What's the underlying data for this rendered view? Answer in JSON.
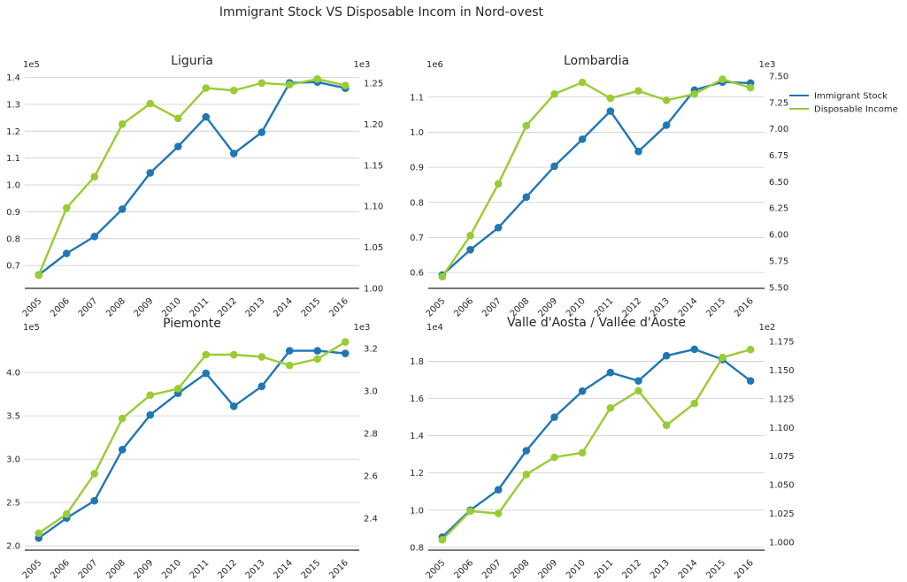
{
  "figure": {
    "title": "Immigrant Stock VS Disposable Incom in Nord-ovest"
  },
  "colors": {
    "immigrant_stock": "#1f77b4",
    "disposable_income": "#99cc33",
    "grid": "#cccccc"
  },
  "legend": {
    "placement": "right",
    "items": [
      {
        "label": "Immigrant Stock",
        "color": "#1f77b4"
      },
      {
        "label": "Disposable Income",
        "color": "#99cc33"
      }
    ]
  },
  "chart_data": [
    {
      "type": "line",
      "title": "Liguria",
      "categories": [
        "2005",
        "2006",
        "2007",
        "2008",
        "2009",
        "2010",
        "2011",
        "2012",
        "2013",
        "2014",
        "2015",
        "2016"
      ],
      "left_axis": {
        "multiplier": "1e5",
        "ylim": [
          0.615,
          1.425
        ],
        "ticks": [
          "0.7",
          "0.8",
          "0.9",
          "1.0",
          "1.1",
          "1.2",
          "1.3",
          "1.4"
        ]
      },
      "right_axis": {
        "multiplier": "1e3",
        "ylim": [
          1.0,
          1.265
        ],
        "ticks": [
          "1.00",
          "1.05",
          "1.10",
          "1.15",
          "1.20",
          "1.25"
        ]
      },
      "grid": true,
      "series": [
        {
          "name": "Immigrant Stock",
          "axis": "left",
          "values": [
            0.665,
            0.745,
            0.808,
            0.91,
            1.045,
            1.143,
            1.253,
            1.117,
            1.196,
            1.38,
            1.383,
            1.36
          ]
        },
        {
          "name": "Disposable Income",
          "axis": "right",
          "values": [
            1.016,
            1.098,
            1.136,
            1.2,
            1.225,
            1.207,
            1.244,
            1.241,
            1.25,
            1.248,
            1.255,
            1.247
          ]
        }
      ]
    },
    {
      "type": "line",
      "title": "Lombardia",
      "categories": [
        "2005",
        "2006",
        "2007",
        "2008",
        "2009",
        "2010",
        "2011",
        "2012",
        "2013",
        "2014",
        "2015",
        "2016"
      ],
      "left_axis": {
        "multiplier": "1e6",
        "ylim": [
          0.555,
          1.175
        ],
        "ticks": [
          "0.6",
          "0.7",
          "0.8",
          "0.9",
          "1.0",
          "1.1"
        ]
      },
      "right_axis": {
        "multiplier": "1e3",
        "ylim": [
          5.49,
          7.55
        ],
        "ticks": [
          "5.50",
          "5.75",
          "6.00",
          "6.25",
          "6.50",
          "6.75",
          "7.00",
          "7.25",
          "7.50"
        ]
      },
      "grid": true,
      "series": [
        {
          "name": "Immigrant Stock",
          "axis": "left",
          "values": [
            0.593,
            0.665,
            0.728,
            0.815,
            0.903,
            0.98,
            1.06,
            0.945,
            1.02,
            1.12,
            1.143,
            1.14
          ]
        },
        {
          "name": "Disposable Income",
          "axis": "right",
          "values": [
            5.6,
            5.99,
            6.48,
            7.03,
            7.33,
            7.44,
            7.29,
            7.36,
            7.27,
            7.33,
            7.47,
            7.39
          ]
        }
      ]
    },
    {
      "type": "line",
      "title": "Piemonte",
      "categories": [
        "2005",
        "2006",
        "2007",
        "2008",
        "2009",
        "2010",
        "2011",
        "2012",
        "2013",
        "2014",
        "2015",
        "2016"
      ],
      "left_axis": {
        "multiplier": "1e5",
        "ylim": [
          1.95,
          4.45
        ],
        "ticks": [
          "2.0",
          "2.5",
          "3.0",
          "3.5",
          "4.0"
        ]
      },
      "right_axis": {
        "multiplier": "1e3",
        "ylim": [
          2.25,
          3.27
        ],
        "ticks": [
          "2.4",
          "2.6",
          "2.8",
          "3.0",
          "3.2"
        ]
      },
      "grid": true,
      "series": [
        {
          "name": "Immigrant Stock",
          "axis": "left",
          "values": [
            2.09,
            2.32,
            2.52,
            3.11,
            3.51,
            3.76,
            3.99,
            3.61,
            3.84,
            4.25,
            4.25,
            4.22
          ]
        },
        {
          "name": "Disposable Income",
          "axis": "right",
          "values": [
            2.33,
            2.42,
            2.61,
            2.87,
            2.98,
            3.01,
            3.17,
            3.17,
            3.16,
            3.12,
            3.15,
            3.23
          ]
        }
      ]
    },
    {
      "type": "line",
      "title": "Valle d'Aosta / Vallée d'Aoste",
      "categories": [
        "2005",
        "2006",
        "2007",
        "2008",
        "2009",
        "2010",
        "2011",
        "2012",
        "2013",
        "2014",
        "2015",
        "2016"
      ],
      "left_axis": {
        "multiplier": "1e4",
        "ylim": [
          0.785,
          1.95
        ],
        "ticks": [
          "0.8",
          "1.0",
          "1.2",
          "1.4",
          "1.6",
          "1.8"
        ]
      },
      "right_axis": {
        "multiplier": "1e2",
        "ylim": [
          0.993,
          1.182
        ],
        "ticks": [
          "1.000",
          "1.025",
          "1.050",
          "1.075",
          "1.100",
          "1.125",
          "1.150",
          "1.175"
        ]
      },
      "grid": true,
      "series": [
        {
          "name": "Immigrant Stock",
          "axis": "left",
          "values": [
            0.855,
            1.0,
            1.11,
            1.32,
            1.5,
            1.64,
            1.74,
            1.695,
            1.83,
            1.865,
            1.81,
            1.695
          ]
        },
        {
          "name": "Disposable Income",
          "axis": "right",
          "values": [
            1.002,
            1.027,
            1.025,
            1.059,
            1.074,
            1.078,
            1.117,
            1.132,
            1.102,
            1.121,
            1.161,
            1.168
          ]
        }
      ]
    }
  ]
}
